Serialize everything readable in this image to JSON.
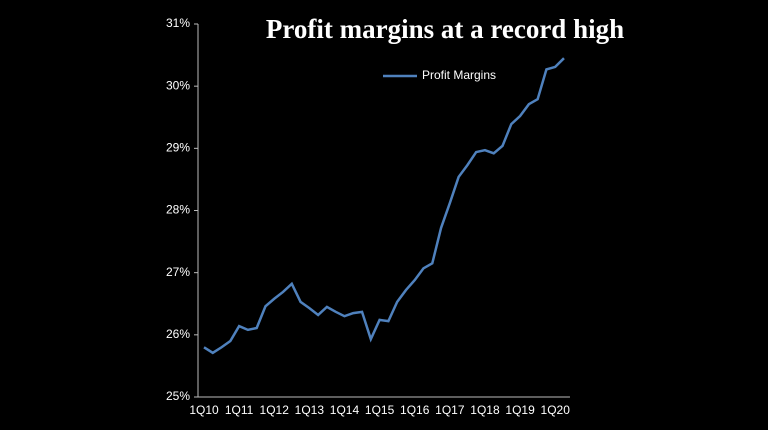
{
  "chart_data": {
    "type": "line",
    "title": "Profit margins at a record high",
    "categories": [
      "1Q10",
      null,
      null,
      null,
      "1Q11",
      null,
      null,
      null,
      "1Q12",
      null,
      null,
      null,
      "1Q13",
      null,
      null,
      null,
      "1Q14",
      null,
      null,
      null,
      "1Q15",
      null,
      null,
      null,
      "1Q16",
      null,
      null,
      null,
      "1Q17",
      null,
      null,
      null,
      "1Q18",
      null,
      null,
      null,
      "1Q19",
      null,
      null,
      null,
      "1Q20",
      null
    ],
    "series": [
      {
        "name": "Profit Margins",
        "color": "#4f81bd",
        "values": [
          25.8,
          25.71,
          25.8,
          25.9,
          26.14,
          26.08,
          26.11,
          26.46,
          26.58,
          26.69,
          26.82,
          26.53,
          26.43,
          26.32,
          26.45,
          26.37,
          26.3,
          26.35,
          26.37,
          25.93,
          26.24,
          26.22,
          26.53,
          26.72,
          26.88,
          27.07,
          27.15,
          27.72,
          28.12,
          28.54,
          28.73,
          28.94,
          28.97,
          28.92,
          29.04,
          29.39,
          29.52,
          29.71,
          29.79,
          30.27,
          30.31,
          30.45
        ]
      }
    ],
    "ylim": [
      25,
      31
    ],
    "yticks": [
      {
        "value": 25,
        "label": "25%"
      },
      {
        "value": 26,
        "label": "26%"
      },
      {
        "value": 27,
        "label": "27%"
      },
      {
        "value": 28,
        "label": "28%"
      },
      {
        "value": 29,
        "label": "29%"
      },
      {
        "value": 30,
        "label": "30%"
      },
      {
        "value": 31,
        "label": "31%"
      }
    ],
    "grid": false,
    "legend": "top"
  }
}
